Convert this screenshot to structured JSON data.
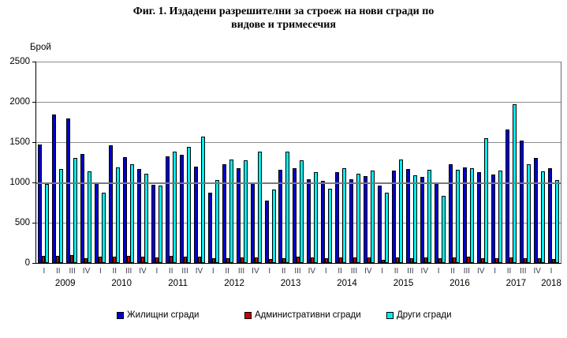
{
  "title": {
    "line1": "Фиг. 1. Издадени разрешителни за строеж на нови сгради по",
    "line2": "видове и тримесечия"
  },
  "y_axis": {
    "unit_label": "Брой",
    "ticks": [
      "0",
      "500",
      "1000",
      "1500",
      "2000",
      "2500"
    ]
  },
  "legend": {
    "items": [
      {
        "label": "Жилищни  сгради",
        "color": "#0000d0"
      },
      {
        "label": "Административни сгради",
        "color": "#cc0000"
      },
      {
        "label": "Други сгради",
        "color": "#00f0f0"
      }
    ]
  },
  "chart_data": {
    "type": "bar",
    "title": "Фиг. 1. Издадени разрешителни за строеж на нови сгради по видове и тримесечия",
    "xlabel": "",
    "ylabel": "Брой",
    "ylim": [
      0,
      2500
    ],
    "gridline_step": 500,
    "grid": true,
    "legend_position": "bottom",
    "categories": [
      "I",
      "II",
      "III",
      "IV",
      "I",
      "II",
      "III",
      "IV",
      "I",
      "II",
      "III",
      "IV",
      "I",
      "II",
      "III",
      "IV",
      "I",
      "II",
      "III",
      "IV",
      "I",
      "II",
      "III",
      "IV",
      "I",
      "II",
      "III",
      "IV",
      "I",
      "II",
      "III",
      "IV",
      "I",
      "II",
      "III",
      "IV",
      "I"
    ],
    "year_groups": [
      {
        "label": "2009",
        "count": 4
      },
      {
        "label": "2010",
        "count": 4
      },
      {
        "label": "2011",
        "count": 4
      },
      {
        "label": "2012",
        "count": 4
      },
      {
        "label": "2013",
        "count": 4
      },
      {
        "label": "2014",
        "count": 4
      },
      {
        "label": "2015",
        "count": 4
      },
      {
        "label": "2016",
        "count": 4
      },
      {
        "label": "2017",
        "count": 4
      },
      {
        "label": "2018",
        "count": 1
      }
    ],
    "series": [
      {
        "name": "Жилищни  сгради",
        "color": "#0000d0",
        "values": [
          1475,
          1840,
          1790,
          1350,
          990,
          1460,
          1315,
          1165,
          975,
          1325,
          1340,
          1195,
          870,
          1225,
          1175,
          1000,
          770,
          1155,
          1175,
          1040,
          1020,
          1125,
          1040,
          1080,
          960,
          1145,
          1165,
          1070,
          1000,
          1225,
          1190,
          1125,
          1100,
          1655,
          1520,
          1305,
          1175
        ]
      },
      {
        "name": "Административни сгради",
        "color": "#cc0000",
        "values": [
          90,
          85,
          100,
          60,
          75,
          75,
          85,
          80,
          70,
          90,
          80,
          75,
          60,
          55,
          65,
          70,
          45,
          55,
          75,
          65,
          60,
          65,
          70,
          70,
          40,
          65,
          55,
          70,
          55,
          65,
          80,
          55,
          55,
          65,
          55,
          55,
          50
        ]
      },
      {
        "name": "Други сгради",
        "color": "#00f0f0",
        "values": [
          985,
          1170,
          1300,
          1140,
          875,
          1185,
          1225,
          1105,
          960,
          1380,
          1440,
          1565,
          1025,
          1285,
          1275,
          1380,
          910,
          1385,
          1270,
          1125,
          920,
          1175,
          1105,
          1145,
          870,
          1285,
          1090,
          1155,
          835,
          1155,
          1180,
          1545,
          1145,
          1975,
          1225,
          1135,
          1030
        ]
      }
    ]
  }
}
